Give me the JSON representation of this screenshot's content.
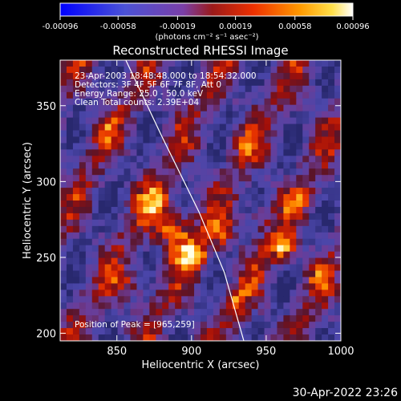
{
  "colorbar": {
    "ticks": [
      "-0.00096",
      "-0.00058",
      "-0.00019",
      "0.00019",
      "0.00058",
      "0.00096"
    ],
    "unit_label": "(photons cm⁻² s⁻¹ asec⁻²)",
    "range": [
      -0.00096,
      0.00096
    ]
  },
  "chart_data": {
    "type": "heatmap",
    "title": "Reconstructed RHESSI Image",
    "xlabel": "Heliocentric X (arcsec)",
    "ylabel": "Heliocentric Y (arcsec)",
    "xlim": [
      812,
      1000
    ],
    "ylim": [
      195,
      380
    ],
    "x_ticks": [
      850,
      900,
      950,
      1000
    ],
    "y_ticks": [
      200,
      250,
      300,
      350
    ],
    "grid": false,
    "annotations": [
      "23-Apr-2003 18:48:48.000 to 18:54:32.000",
      "Detectors: 3F 4F 5F 6F 7F 8F, Att 0",
      "Energy Range: 25.0 - 50.0 keV",
      "Clean     Total counts: 2.39E+04"
    ],
    "peak_label": "Position of Peak = [965,259]",
    "limb_curve": [
      [
        856,
        380
      ],
      [
        880,
        330
      ],
      [
        905,
        280
      ],
      [
        922,
        240
      ],
      [
        935,
        195
      ]
    ]
  },
  "timestamp": "30-Apr-2022 23:26",
  "colors": {
    "background": "#000000",
    "text": "#ffffff"
  }
}
